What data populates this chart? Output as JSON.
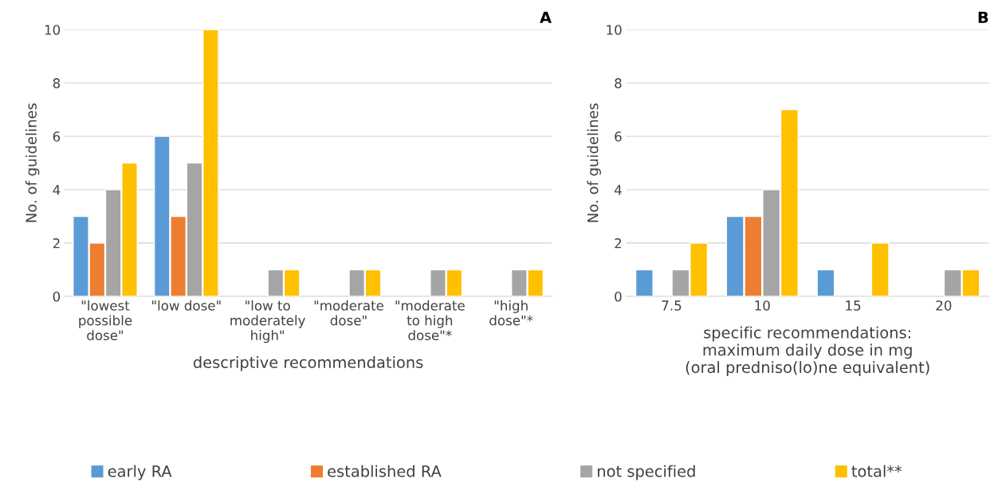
{
  "chart_data": [
    {
      "type": "bar",
      "title": "A",
      "ylabel": "No. of guidelines",
      "xlabel": "descriptive recommendations",
      "categories": [
        "\"lowest\npossible\ndose\"",
        "\"low dose\"",
        "\"low to\nmoderately\nhigh\"",
        "\"moderate\ndose\"",
        "\"moderate\nto high\ndose\"*",
        "\"high\ndose\"*"
      ],
      "series": [
        {
          "name": "early RA",
          "color": "#5b9bd5",
          "values": [
            3,
            6,
            null,
            null,
            null,
            null
          ]
        },
        {
          "name": "established RA",
          "color": "#ed7d31",
          "values": [
            2,
            3,
            null,
            null,
            null,
            null
          ]
        },
        {
          "name": "not specified",
          "color": "#a5a5a5",
          "values": [
            4,
            5,
            1,
            1,
            1,
            1
          ]
        },
        {
          "name": "total**",
          "color": "#ffc000",
          "values": [
            5,
            10,
            1,
            1,
            1,
            1
          ]
        }
      ],
      "ylim": [
        0,
        10
      ],
      "yticks": [
        0,
        2,
        4,
        6,
        8,
        10
      ],
      "grid": "y",
      "legend": "bottom"
    },
    {
      "type": "bar",
      "title": "B",
      "ylabel": "No. of guidelines",
      "xlabel": "specific recommendations:\nmaximum daily dose in mg\n(oral predniso(lo)ne equivalent)",
      "categories": [
        "7.5",
        "10",
        "15",
        "20"
      ],
      "series": [
        {
          "color": "#5b9bd5",
          "values": [
            1,
            3,
            1,
            null
          ]
        },
        {
          "color": "#ed7d31",
          "values": [
            null,
            3,
            null,
            null
          ]
        },
        {
          "color": "#a5a5a5",
          "values": [
            1,
            4,
            null,
            1
          ]
        },
        {
          "color": "#ffc000",
          "values": [
            2,
            7,
            2,
            1
          ]
        }
      ],
      "ylim": [
        0,
        10
      ],
      "yticks": [
        0,
        2,
        4,
        6,
        8,
        10
      ],
      "grid": "y"
    }
  ]
}
